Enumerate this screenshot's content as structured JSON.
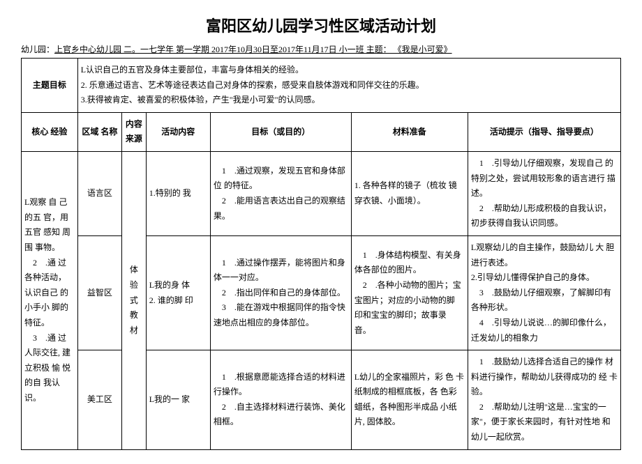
{
  "title": "富阳区幼儿园学习性区域活动计划",
  "subtitle": {
    "prefix": "幼儿园：",
    "school": "上官乡中心幼儿园  二。一七学年  第一学期  2017年10月30日至2017年11月17日  小一班  主题： 《我是小可爱》"
  },
  "goalRow": {
    "label": "主题目标",
    "text": "L认识自己的五官及身体主要部位，丰富与身体相关的经验。\n2. 乐意通过语言、艺术等途径表达自己对身体的探索，感受来自肢体游戏和同伴交往的乐趣。\n3.获得被肯定、被喜爱的积极体验，产生\"我是小可爱\"的认同感。"
  },
  "headers": {
    "core": "核心  经验",
    "area": "区域  名称",
    "source": "内容来源",
    "activity": "活动内容",
    "goal": "目标（或目的）",
    "material": "材料准备",
    "tips": "活动提示（指导、指导要点）"
  },
  "coreExp": "L观察 自 己的五 官，用五官 感知 周围 事物。\n　2　.通 过 各种活动，认识自己 的 小手小 脚的特征。\n　3　.通 过 人际交往, 建立积极 愉 悦的自 我认 识。",
  "source": "体　验 式 教 材",
  "rows": [
    {
      "area": "语言区",
      "activity": "1.特别的 我",
      "goal": "　1　.通过观察，发现五官和身体部 位 的特征。\n　2　.能用语言表达出自己的观察结 果。",
      "material": "1. 各种各样的镜子（梳妆 镜 穿衣镜、小面境）。",
      "tips": "　1　.引导幼儿仔细观察，发现自己 的 特别之处，尝试用较形象的语言进行 描述。\n　2　.帮助幼儿形成积极的自我认识，初步获得自我认识同感。"
    },
    {
      "area": "益智区",
      "activity": "L我的身 体\n2. 谁的脚 印",
      "goal": "　1　.通过操作摆弄，能将图片和身体一一对应。\n　2　.指出同伴和自己的身体部位。\n　3　.能在游戏中根据同伴的指令快 速地点出相应的身体部位。",
      "material": "　1　.身体结构模型、有关身 体各部位的图片。\n　2　.各种小动物的图片；宝 宝图片；对应的小动物的脚 印和宝宝的脚印；故事录 音。",
      "tips": "L观察幼儿的自主操作，鼓励幼儿 大 胆进行表述。\n2.引导幼儿懂得保护自己的身体。\n　3　.鼓励幼儿仔细观察，了解脚印有 各种形状。\n　4　.引导幼儿说说…的脚印像什么， 迁发幼儿的相象力"
    },
    {
      "area": "美工区",
      "activity": "L我的一 家",
      "goal": "　1　.根据意愿能选择合适的材料进 行操作。\n　2　.自主选择材料进行装饰、美化 相框。",
      "material": "L幼儿的全家福照片，彩 色 卡纸制成的相框底板，各 色彩 蜡纸，各种图形半成品 小纸片, 固体胶。",
      "tips": "　1　.鼓励幼儿选择合适自己的操作 材料进行操作，帮助幼儿获得成功的 经 卡验。\n　2　.帮助幼儿注明\"这是…宝宝的一 家\"，便于家长来园时，有针对性地 和 幼儿一起欣赏。"
    }
  ]
}
